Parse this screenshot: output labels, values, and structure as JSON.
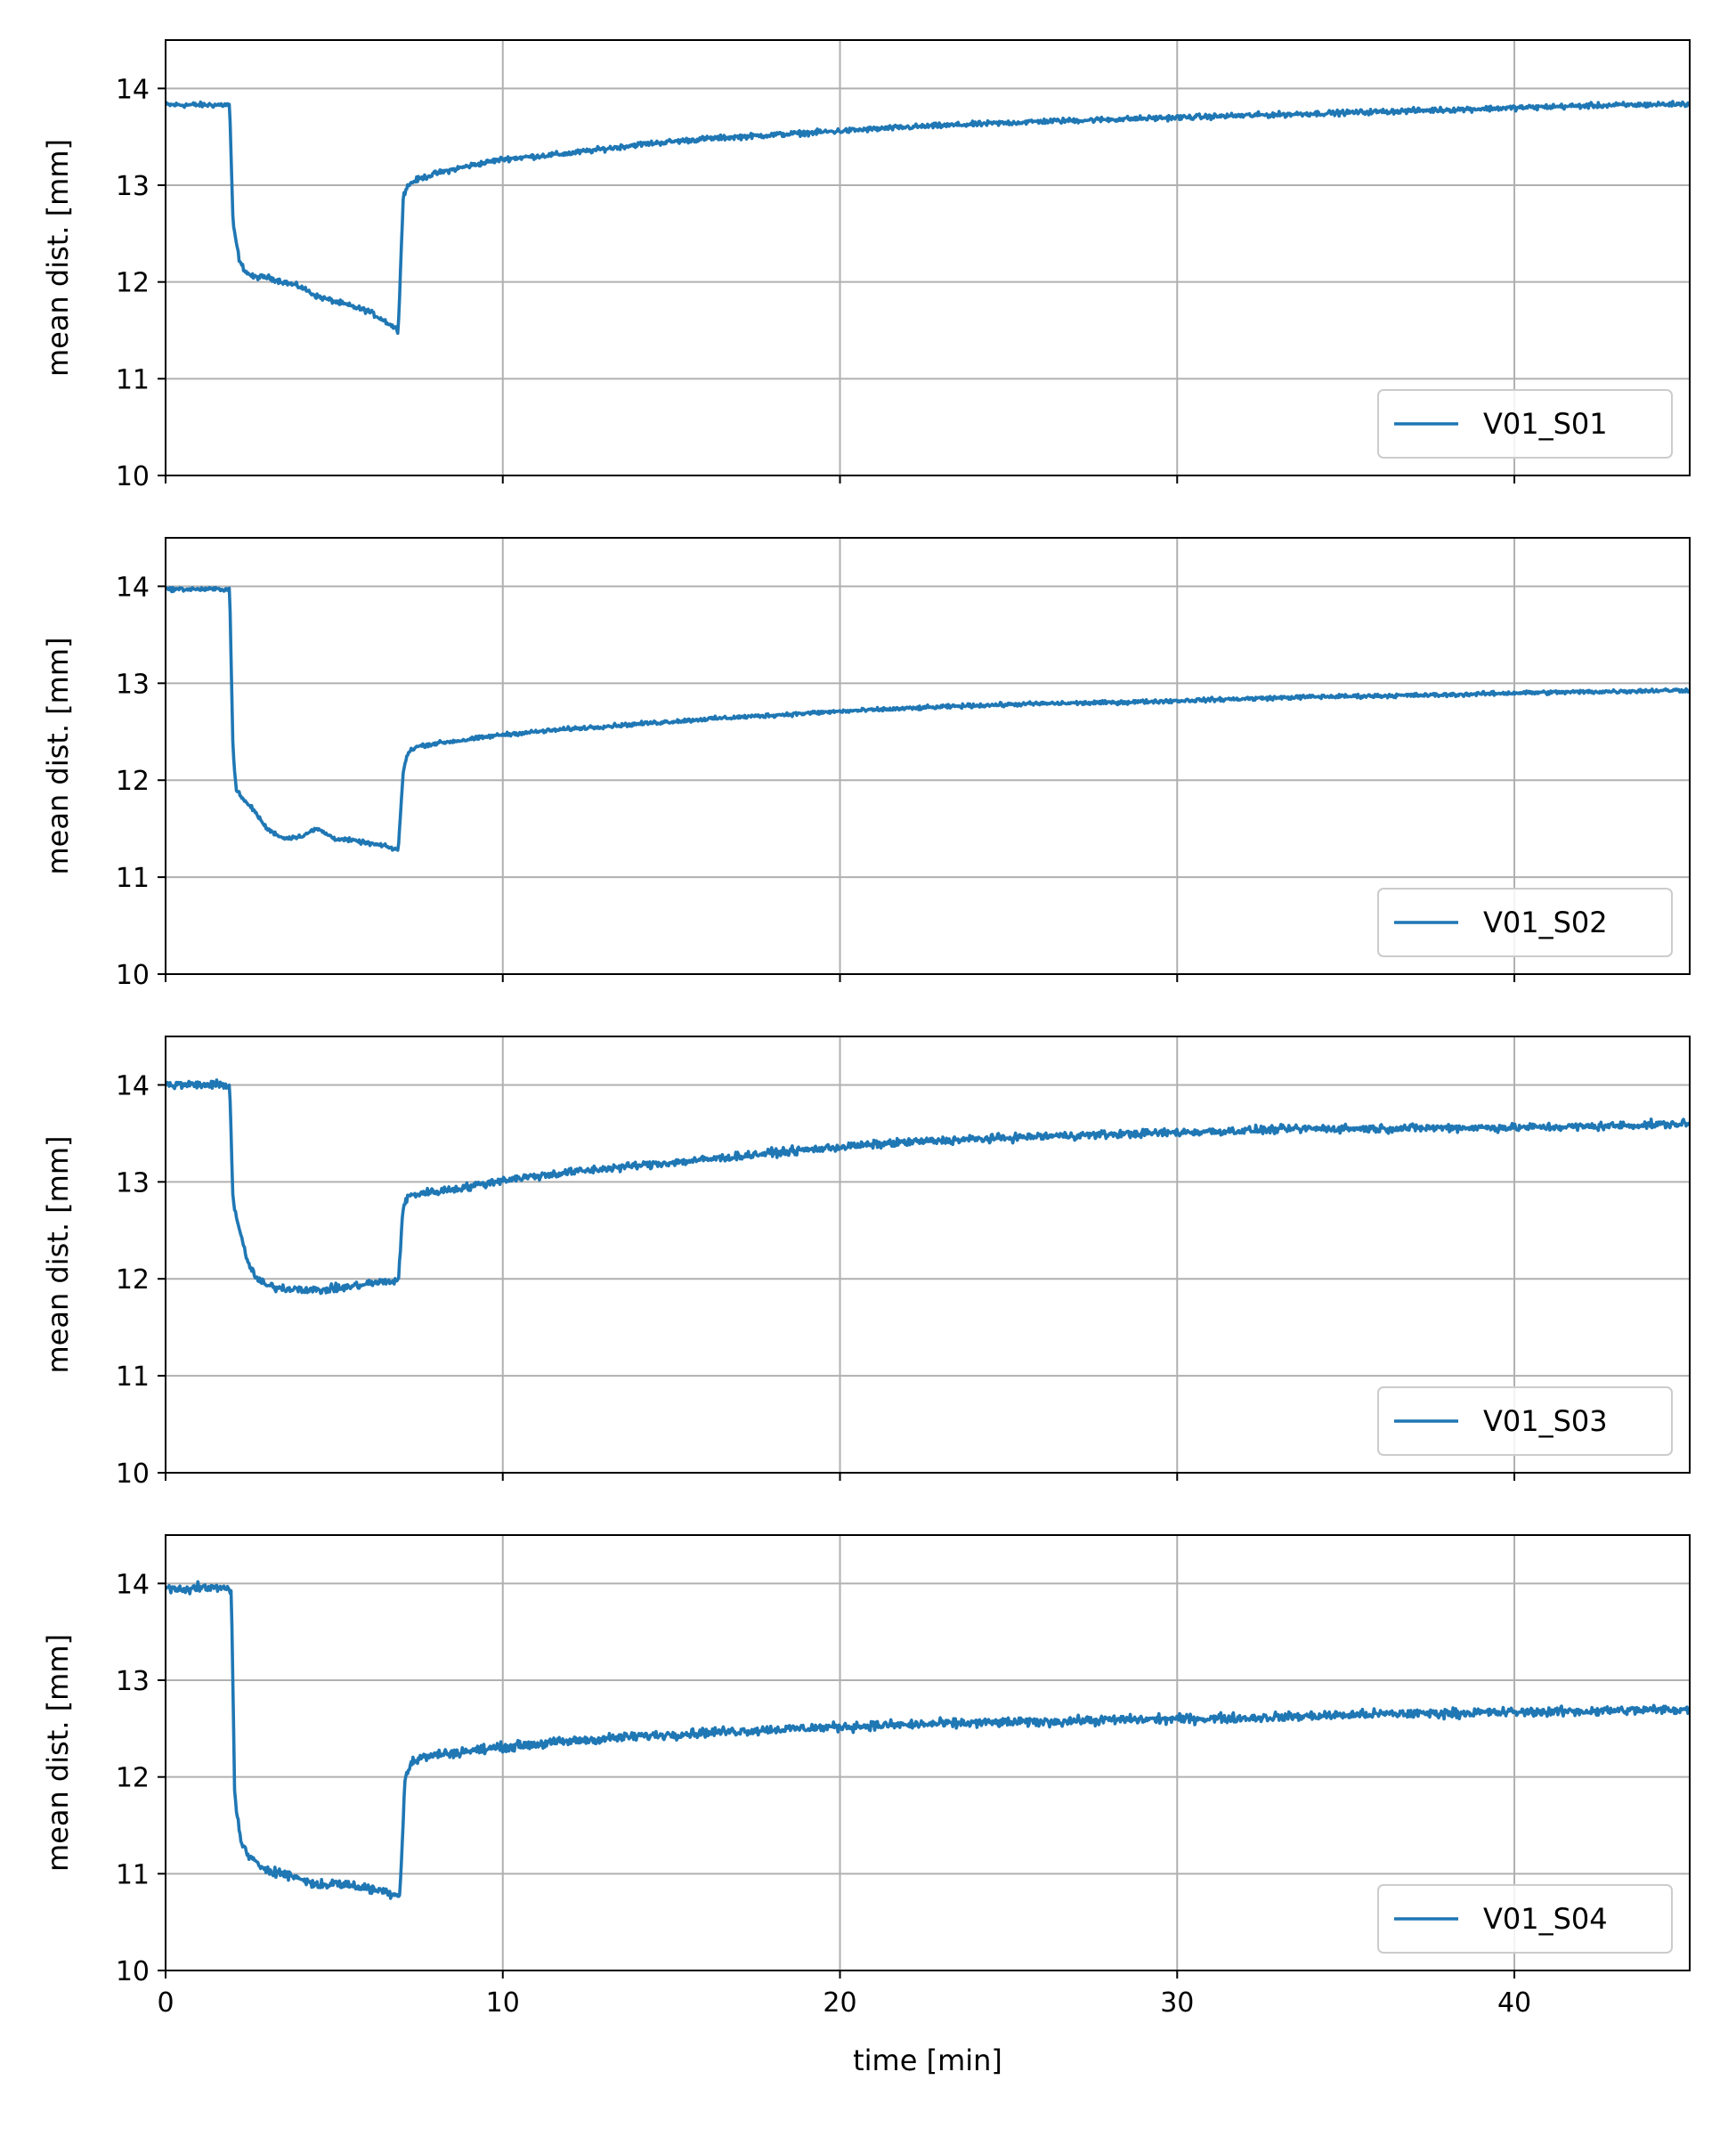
{
  "chart_data": [
    {
      "type": "line",
      "ylabel": "mean dist. [mm]",
      "xlabel": "",
      "xlim": [
        0,
        45.2
      ],
      "ylim": [
        10,
        14.5
      ],
      "xticks": [
        0,
        10,
        20,
        30,
        40
      ],
      "yticks": [
        10,
        11,
        12,
        13,
        14
      ],
      "grid": true,
      "legend_position": "lower-right",
      "series": [
        {
          "name": "V01_S01",
          "color": "#1f77b4",
          "x": [
            0,
            1.9,
            2.0,
            2.2,
            2.4,
            2.6,
            3.0,
            3.5,
            4.0,
            4.5,
            5.0,
            5.5,
            6.0,
            6.5,
            6.9,
            7.05,
            7.2,
            7.4,
            8.0,
            9.0,
            10.0,
            12.0,
            14.0,
            16.0,
            18.0,
            20.0,
            22.0,
            24.0,
            26.0,
            28.0,
            30.0,
            32.0,
            34.0,
            36.0,
            38.0,
            40.0,
            42.0,
            45.2
          ],
          "y": [
            13.83,
            13.83,
            12.6,
            12.2,
            12.1,
            12.05,
            12.05,
            12.0,
            11.95,
            11.85,
            11.8,
            11.75,
            11.7,
            11.6,
            11.5,
            12.9,
            13.0,
            13.05,
            13.12,
            13.2,
            13.27,
            13.33,
            13.42,
            13.48,
            13.52,
            13.56,
            13.6,
            13.63,
            13.66,
            13.68,
            13.7,
            13.72,
            13.74,
            13.76,
            13.78,
            13.8,
            13.82,
            13.84
          ],
          "noise": 0.04
        }
      ]
    },
    {
      "type": "line",
      "ylabel": "mean dist. [mm]",
      "xlabel": "",
      "xlim": [
        0,
        45.2
      ],
      "ylim": [
        10,
        14.5
      ],
      "xticks": [
        0,
        10,
        20,
        30,
        40
      ],
      "yticks": [
        10,
        11,
        12,
        13,
        14
      ],
      "grid": true,
      "legend_position": "lower-right",
      "series": [
        {
          "name": "V01_S02",
          "color": "#1f77b4",
          "x": [
            0,
            1.9,
            2.0,
            2.1,
            2.3,
            2.6,
            3.0,
            3.5,
            4.0,
            4.5,
            5.0,
            5.5,
            6.0,
            6.5,
            6.9,
            7.05,
            7.2,
            7.5,
            8.0,
            9.0,
            10.0,
            12.0,
            14.0,
            16.0,
            18.0,
            20.0,
            22.0,
            24.0,
            26.0,
            28.0,
            30.0,
            32.0,
            34.0,
            36.0,
            38.0,
            40.0,
            42.0,
            45.2
          ],
          "y": [
            13.97,
            13.97,
            12.3,
            11.9,
            11.8,
            11.7,
            11.5,
            11.4,
            11.42,
            11.5,
            11.4,
            11.38,
            11.35,
            11.32,
            11.28,
            12.1,
            12.3,
            12.35,
            12.38,
            12.42,
            12.47,
            12.53,
            12.58,
            12.63,
            12.67,
            12.71,
            12.74,
            12.77,
            12.79,
            12.8,
            12.82,
            12.84,
            12.86,
            12.87,
            12.88,
            12.9,
            12.91,
            12.93
          ],
          "noise": 0.03
        }
      ]
    },
    {
      "type": "line",
      "ylabel": "mean dist. [mm]",
      "xlabel": "",
      "xlim": [
        0,
        45.2
      ],
      "ylim": [
        10,
        14.5
      ],
      "xticks": [
        0,
        10,
        20,
        30,
        40
      ],
      "yticks": [
        10,
        11,
        12,
        13,
        14
      ],
      "grid": true,
      "legend_position": "lower-right",
      "series": [
        {
          "name": "V01_S03",
          "color": "#1f77b4",
          "x": [
            0,
            1.9,
            2.0,
            2.2,
            2.4,
            2.7,
            3.0,
            3.5,
            4.0,
            4.5,
            5.0,
            5.5,
            6.0,
            6.5,
            6.9,
            7.05,
            7.2,
            7.5,
            8.0,
            9.0,
            10.0,
            12.0,
            14.0,
            16.0,
            18.0,
            20.0,
            22.0,
            24.0,
            26.0,
            28.0,
            30.0,
            32.0,
            34.0,
            36.0,
            38.0,
            40.0,
            42.0,
            45.2
          ],
          "y": [
            14.0,
            14.0,
            12.8,
            12.5,
            12.2,
            12.0,
            11.93,
            11.9,
            11.9,
            11.88,
            11.9,
            11.92,
            11.95,
            11.97,
            11.98,
            12.75,
            12.85,
            12.88,
            12.9,
            12.95,
            13.02,
            13.1,
            13.17,
            13.23,
            13.3,
            13.36,
            13.41,
            13.44,
            13.47,
            13.49,
            13.51,
            13.53,
            13.55,
            13.55,
            13.56,
            13.56,
            13.57,
            13.6
          ],
          "noise": 0.06
        }
      ]
    },
    {
      "type": "line",
      "ylabel": "mean dist. [mm]",
      "xlabel": "time [min]",
      "xlim": [
        0,
        45.2
      ],
      "ylim": [
        10,
        14.5
      ],
      "xticks": [
        0,
        10,
        20,
        30,
        40
      ],
      "yticks": [
        10,
        11,
        12,
        13,
        14
      ],
      "grid": true,
      "legend_position": "lower-right",
      "series": [
        {
          "name": "V01_S04",
          "color": "#1f77b4",
          "x": [
            0,
            1.95,
            2.05,
            2.2,
            2.4,
            2.7,
            3.0,
            3.5,
            4.0,
            4.5,
            5.0,
            5.5,
            6.0,
            6.5,
            6.95,
            7.1,
            7.3,
            7.6,
            8.0,
            9.0,
            10.0,
            12.0,
            14.0,
            16.0,
            18.0,
            20.0,
            22.0,
            24.0,
            26.0,
            28.0,
            30.0,
            32.0,
            34.0,
            36.0,
            38.0,
            40.0,
            42.0,
            45.2
          ],
          "y": [
            13.95,
            13.95,
            11.8,
            11.4,
            11.2,
            11.1,
            11.05,
            11.0,
            10.95,
            10.88,
            10.9,
            10.88,
            10.85,
            10.82,
            10.78,
            12.0,
            12.15,
            12.2,
            12.23,
            12.27,
            12.31,
            12.37,
            12.42,
            12.46,
            12.49,
            12.52,
            12.54,
            12.56,
            12.57,
            12.59,
            12.6,
            12.61,
            12.63,
            12.65,
            12.66,
            12.67,
            12.68,
            12.7
          ],
          "noise": 0.07
        }
      ]
    }
  ]
}
